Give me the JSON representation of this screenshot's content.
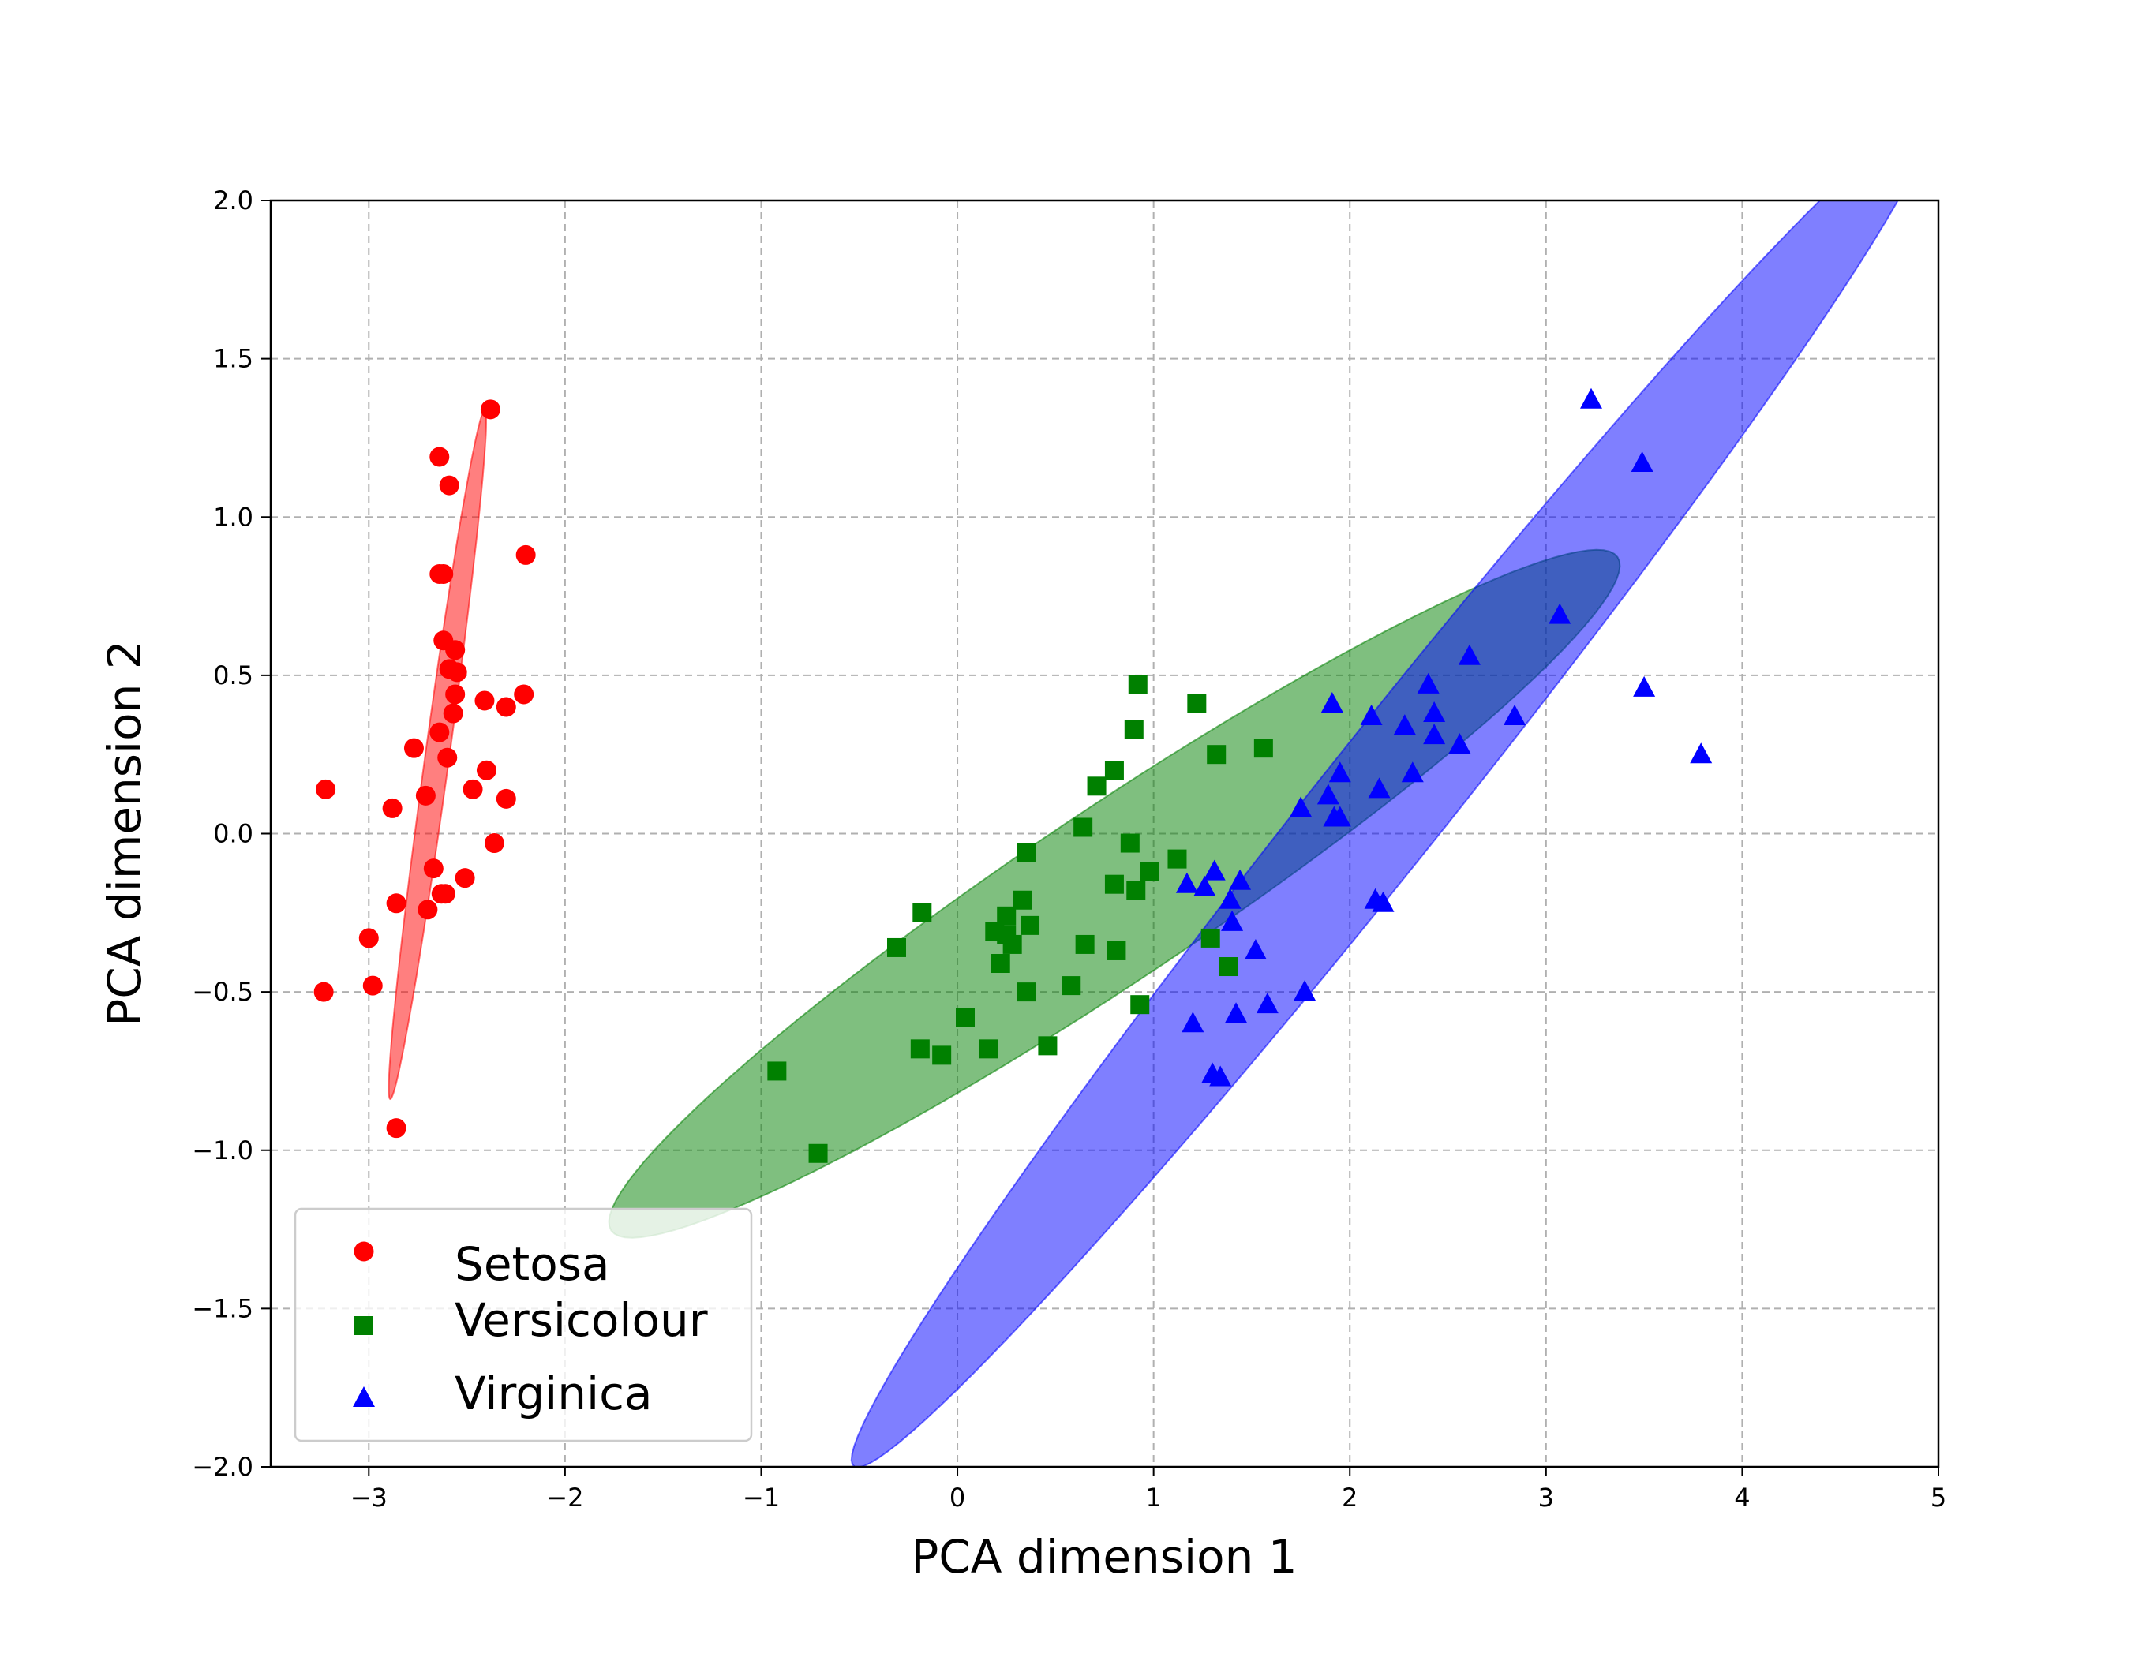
{
  "chart_data": {
    "type": "scatter",
    "xlabel": "PCA dimension 1",
    "ylabel": "PCA dimension 2",
    "xlim": [
      -3.5,
      5
    ],
    "ylim": [
      -2.0,
      2.0
    ],
    "xticks": [
      -3,
      -2,
      -1,
      0,
      1,
      2,
      3,
      4,
      5
    ],
    "xtick_labels": [
      "−3",
      "−2",
      "−1",
      "0",
      "1",
      "2",
      "3",
      "4",
      "5"
    ],
    "yticks": [
      -2.0,
      -1.5,
      -1.0,
      -0.5,
      0.0,
      0.5,
      1.0,
      1.5,
      2.0
    ],
    "ytick_labels": [
      "−2.0",
      "−1.5",
      "−1.0",
      "−0.5",
      "0.0",
      "0.5",
      "1.0",
      "1.5",
      "2.0"
    ],
    "grid": true,
    "legend_position": "lower-left",
    "series": [
      {
        "name": "Setosa",
        "marker": "circle",
        "color": "#ff0000",
        "points": [
          [
            -2.38,
            1.34
          ],
          [
            -2.64,
            1.19
          ],
          [
            -2.59,
            1.1
          ],
          [
            -2.64,
            0.82
          ],
          [
            -2.62,
            0.82
          ],
          [
            -2.2,
            0.88
          ],
          [
            -2.62,
            0.61
          ],
          [
            -2.56,
            0.58
          ],
          [
            -2.59,
            0.52
          ],
          [
            -2.55,
            0.51
          ],
          [
            -2.56,
            0.44
          ],
          [
            -2.41,
            0.42
          ],
          [
            -2.3,
            0.4
          ],
          [
            -2.21,
            0.44
          ],
          [
            -2.57,
            0.38
          ],
          [
            -2.64,
            0.32
          ],
          [
            -2.77,
            0.27
          ],
          [
            -2.6,
            0.24
          ],
          [
            -2.4,
            0.2
          ],
          [
            -2.3,
            0.11
          ],
          [
            -2.71,
            0.12
          ],
          [
            -2.47,
            0.14
          ],
          [
            -3.22,
            0.14
          ],
          [
            -2.88,
            0.08
          ],
          [
            -2.36,
            -0.03
          ],
          [
            -2.67,
            -0.11
          ],
          [
            -2.51,
            -0.14
          ],
          [
            -2.61,
            -0.19
          ],
          [
            -2.63,
            -0.19
          ],
          [
            -2.86,
            -0.22
          ],
          [
            -2.7,
            -0.24
          ],
          [
            -3.0,
            -0.33
          ],
          [
            -2.98,
            -0.48
          ],
          [
            -3.23,
            -0.5
          ],
          [
            -2.86,
            -0.93
          ]
        ]
      },
      {
        "name": "Versicolour",
        "marker": "square",
        "color": "#008000",
        "points": [
          [
            0.92,
            0.47
          ],
          [
            1.22,
            0.41
          ],
          [
            0.9,
            0.33
          ],
          [
            1.32,
            0.25
          ],
          [
            1.56,
            0.27
          ],
          [
            0.8,
            0.2
          ],
          [
            0.71,
            0.15
          ],
          [
            0.64,
            0.02
          ],
          [
            0.88,
            -0.03
          ],
          [
            0.35,
            -0.06
          ],
          [
            1.12,
            -0.08
          ],
          [
            0.98,
            -0.12
          ],
          [
            0.8,
            -0.16
          ],
          [
            0.91,
            -0.18
          ],
          [
            -0.18,
            -0.25
          ],
          [
            0.33,
            -0.21
          ],
          [
            0.25,
            -0.26
          ],
          [
            0.37,
            -0.29
          ],
          [
            0.19,
            -0.31
          ],
          [
            0.25,
            -0.32
          ],
          [
            0.28,
            -0.35
          ],
          [
            0.65,
            -0.35
          ],
          [
            -0.31,
            -0.36
          ],
          [
            0.81,
            -0.37
          ],
          [
            0.22,
            -0.41
          ],
          [
            0.35,
            -0.5
          ],
          [
            0.58,
            -0.48
          ],
          [
            0.04,
            -0.58
          ],
          [
            -0.19,
            -0.68
          ],
          [
            -0.08,
            -0.7
          ],
          [
            0.16,
            -0.68
          ],
          [
            -0.92,
            -0.75
          ],
          [
            -0.71,
            -1.01
          ],
          [
            0.93,
            -0.54
          ],
          [
            0.46,
            -0.67
          ],
          [
            1.38,
            -0.42
          ],
          [
            1.29,
            -0.33
          ]
        ]
      },
      {
        "name": "Virginica",
        "marker": "triangle",
        "color": "#0000ff",
        "points": [
          [
            3.23,
            1.37
          ],
          [
            3.49,
            1.17
          ],
          [
            3.07,
            0.69
          ],
          [
            2.61,
            0.56
          ],
          [
            2.4,
            0.47
          ],
          [
            3.5,
            0.46
          ],
          [
            1.91,
            0.41
          ],
          [
            2.11,
            0.37
          ],
          [
            2.43,
            0.38
          ],
          [
            2.28,
            0.34
          ],
          [
            2.43,
            0.31
          ],
          [
            2.84,
            0.37
          ],
          [
            2.56,
            0.28
          ],
          [
            3.79,
            0.25
          ],
          [
            1.95,
            0.19
          ],
          [
            2.32,
            0.19
          ],
          [
            2.15,
            0.14
          ],
          [
            1.89,
            0.12
          ],
          [
            1.75,
            0.08
          ],
          [
            1.92,
            0.05
          ],
          [
            1.95,
            0.05
          ],
          [
            1.31,
            -0.12
          ],
          [
            1.17,
            -0.16
          ],
          [
            1.26,
            -0.17
          ],
          [
            1.44,
            -0.15
          ],
          [
            1.39,
            -0.21
          ],
          [
            1.4,
            -0.28
          ],
          [
            2.13,
            -0.21
          ],
          [
            2.17,
            -0.22
          ],
          [
            1.52,
            -0.37
          ],
          [
            1.77,
            -0.5
          ],
          [
            1.58,
            -0.54
          ],
          [
            1.42,
            -0.57
          ],
          [
            1.2,
            -0.6
          ],
          [
            1.3,
            -0.76
          ],
          [
            1.34,
            -0.77
          ]
        ]
      }
    ],
    "ellipses": [
      {
        "series": "Setosa",
        "color": "#ff0000",
        "center": [
          -2.65,
          0.25
        ],
        "semi_major": 1.115,
        "semi_minor": 0.0605,
        "angle_deg": 77.5
      },
      {
        "series": "Versicolour",
        "color": "#008000",
        "center": [
          0.8,
          -0.19
        ],
        "semi_major": 2.78,
        "semi_minor": 0.3,
        "angle_deg": 22.2
      },
      {
        "series": "Virginica",
        "color": "#0000ff",
        "center": [
          2.21,
          0.13
        ],
        "semi_major": 3.47,
        "semi_minor": 0.255,
        "angle_deg": 37.7
      }
    ]
  }
}
